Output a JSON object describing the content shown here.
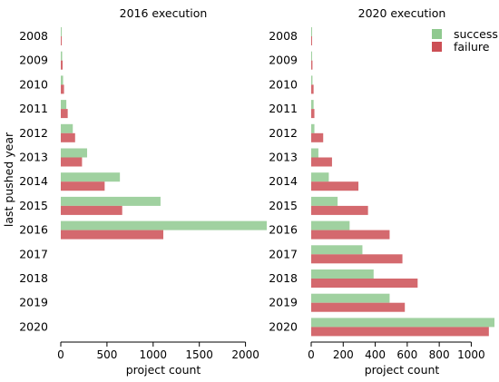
{
  "figure": {
    "ylabel": "last pushed year"
  },
  "legend": {
    "items": [
      {
        "label": "success",
        "color": "#8fc98f"
      },
      {
        "label": "failure",
        "color": "#cc4f55"
      }
    ]
  },
  "chart_data": [
    {
      "type": "bar",
      "orientation": "horizontal",
      "title": "2016 execution",
      "xlabel": "project count",
      "ylabel": "last pushed year",
      "categories": [
        "2008",
        "2009",
        "2010",
        "2011",
        "2012",
        "2013",
        "2014",
        "2015",
        "2016",
        "2017",
        "2018",
        "2019",
        "2020"
      ],
      "series": [
        {
          "name": "success",
          "color": "#8fc98f",
          "values": [
            2,
            15,
            25,
            60,
            130,
            285,
            640,
            1080,
            2230,
            0,
            0,
            0,
            0
          ]
        },
        {
          "name": "failure",
          "color": "#cc4f55",
          "values": [
            2,
            20,
            35,
            75,
            155,
            230,
            475,
            665,
            1110,
            0,
            0,
            0,
            0
          ]
        }
      ],
      "xlim": [
        0,
        2230
      ],
      "xticks": [
        0,
        500,
        1000,
        1500,
        2000
      ],
      "grid": false
    },
    {
      "type": "bar",
      "orientation": "horizontal",
      "title": "2020 execution",
      "xlabel": "project count",
      "categories": [
        "2008",
        "2009",
        "2010",
        "2011",
        "2012",
        "2013",
        "2014",
        "2015",
        "2016",
        "2017",
        "2018",
        "2019",
        "2020"
      ],
      "series": [
        {
          "name": "success",
          "color": "#8fc98f",
          "values": [
            2,
            5,
            8,
            15,
            20,
            45,
            110,
            165,
            240,
            320,
            390,
            490,
            1145
          ]
        },
        {
          "name": "failure",
          "color": "#cc4f55",
          "values": [
            5,
            8,
            15,
            20,
            75,
            130,
            295,
            355,
            490,
            570,
            665,
            585,
            1110
          ]
        }
      ],
      "xlim": [
        0,
        1145
      ],
      "xticks": [
        0,
        200,
        400,
        600,
        800,
        1000
      ],
      "grid": false,
      "legend": "top-right"
    }
  ]
}
